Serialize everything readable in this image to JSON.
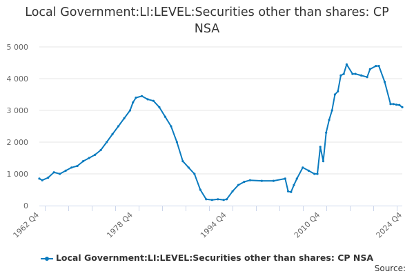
{
  "title": {
    "line1": "Local Government:LI:LEVEL:Securities other than shares: CP",
    "line2": "NSA"
  },
  "legend": {
    "label": "Local Government:LI:LEVEL:Securities other than shares: CP NSA"
  },
  "source": {
    "label": "Source:"
  },
  "colors": {
    "series": "#0a7bbf",
    "grid": "#e6e6e6",
    "axis": "#ccd6eb"
  },
  "chart_data": {
    "type": "line",
    "title": "Local Government:LI:LEVEL:Securities other than shares: CP NSA",
    "xlabel": "",
    "ylabel": "",
    "ylim": [
      0,
      5000
    ],
    "yticks": [
      0,
      1000,
      2000,
      3000,
      4000,
      5000
    ],
    "ytick_labels": [
      "0",
      "1 000",
      "2 000",
      "3 000",
      "4 000",
      "5 000"
    ],
    "xtick_labels": [
      "1962 Q4",
      "1978 Q4",
      "1994 Q4",
      "2010 Q4",
      "2024 Q4"
    ],
    "grid": true,
    "legend_position": "bottom-center",
    "series": [
      {
        "name": "Local Government:LI:LEVEL:Securities other than shares: CP NSA",
        "x": [
          "1962 Q4",
          "1963 Q2",
          "1964 Q2",
          "1965 Q2",
          "1966 Q2",
          "1967 Q2",
          "1968 Q2",
          "1969 Q2",
          "1970 Q2",
          "1971 Q2",
          "1972 Q2",
          "1973 Q2",
          "1974 Q2",
          "1975 Q2",
          "1976 Q2",
          "1977 Q2",
          "1978 Q2",
          "1978 Q4",
          "1979 Q2",
          "1980 Q2",
          "1981 Q2",
          "1982 Q2",
          "1983 Q2",
          "1984 Q2",
          "1985 Q2",
          "1986 Q2",
          "1987 Q2",
          "1988 Q2",
          "1989 Q2",
          "1990 Q2",
          "1991 Q2",
          "1992 Q2",
          "1993 Q2",
          "1994 Q2",
          "1994 Q4",
          "1995 Q4",
          "1996 Q4",
          "1997 Q4",
          "1998 Q4",
          "2000 Q4",
          "2002 Q4",
          "2004 Q4",
          "2005 Q2",
          "2005 Q4",
          "2006 Q2",
          "2006 Q4",
          "2007 Q4",
          "2008 Q4",
          "2009 Q4",
          "2010 Q2",
          "2010 Q4",
          "2011 Q2",
          "2011 Q4",
          "2012 Q2",
          "2012 Q4",
          "2013 Q2",
          "2013 Q4",
          "2014 Q2",
          "2014 Q4",
          "2015 Q2",
          "2016 Q2",
          "2016 Q4",
          "2017 Q4",
          "2018 Q4",
          "2019 Q2",
          "2020 Q2",
          "2020 Q4",
          "2021 Q4",
          "2022 Q4",
          "2023 Q2",
          "2023 Q4",
          "2024 Q2",
          "2024 Q4"
        ],
        "values": [
          850,
          800,
          880,
          1050,
          1000,
          1100,
          1200,
          1250,
          1400,
          1500,
          1600,
          1750,
          2000,
          2250,
          2500,
          2750,
          3000,
          3250,
          3400,
          3450,
          3350,
          3300,
          3100,
          2800,
          2500,
          2000,
          1400,
          1200,
          1000,
          500,
          200,
          180,
          200,
          180,
          200,
          450,
          650,
          750,
          800,
          780,
          780,
          850,
          450,
          430,
          650,
          850,
          1200,
          1100,
          1000,
          1000,
          1850,
          1400,
          2300,
          2700,
          3000,
          3500,
          3600,
          4100,
          4150,
          4450,
          4150,
          4150,
          4100,
          4050,
          4300,
          4400,
          4400,
          3900,
          3200,
          3200,
          3180,
          3170,
          3100
        ]
      }
    ]
  }
}
